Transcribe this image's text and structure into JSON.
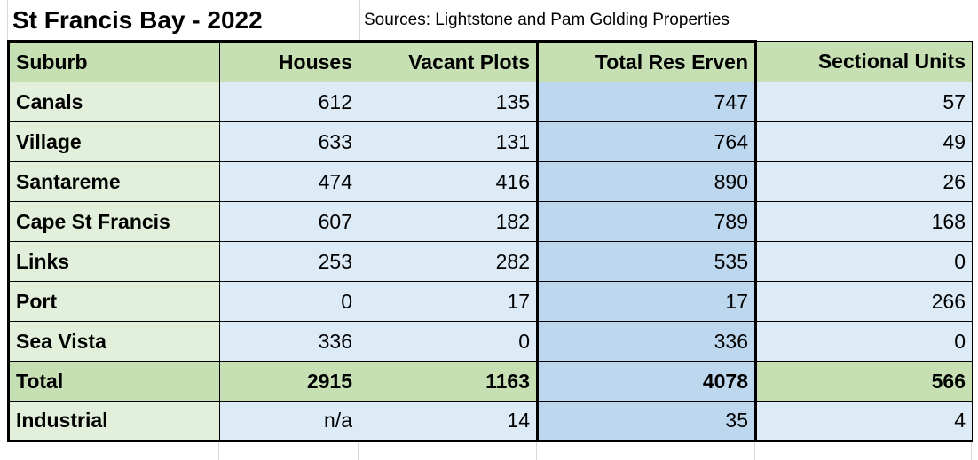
{
  "page": {
    "title": "St Francis Bay - 2022",
    "sources_note": "Sources: Lightstone and Pam Golding Properties"
  },
  "colors": {
    "header_green": "#c6e0b4",
    "row_label_green": "#e2efda",
    "value_blue": "#ddebf7",
    "total_column_blue": "#bdd7ee",
    "total_row_green": "#c6e0b4",
    "border_black": "#000000",
    "gridline_gray": "#d8d8d8"
  },
  "chart_data": {
    "type": "table",
    "title": "St Francis Bay - 2022",
    "subtitle": "Sources: Lightstone and Pam Golding Properties",
    "columns": [
      "Suburb",
      "Houses",
      "Vacant Plots",
      "Total Res Erven",
      "Sectional Units"
    ],
    "rows": [
      [
        "Canals",
        "612",
        "135",
        "747",
        "57"
      ],
      [
        "Village",
        "633",
        "131",
        "764",
        "49"
      ],
      [
        "Santareme",
        "474",
        "416",
        "890",
        "26"
      ],
      [
        "Cape St Francis",
        "607",
        "182",
        "789",
        "168"
      ],
      [
        "Links",
        "253",
        "282",
        "535",
        "0"
      ],
      [
        "Port",
        "0",
        "17",
        "17",
        "266"
      ],
      [
        "Sea Vista",
        "336",
        "0",
        "336",
        "0"
      ],
      [
        "Total",
        "2915",
        "1163",
        "4078",
        "566"
      ],
      [
        "Industrial",
        "n/a",
        "14",
        "35",
        "4"
      ]
    ],
    "emphasis_row_label": "Total",
    "highlighted_column": "Total Res Erven",
    "column_totals": {
      "Houses": 2915,
      "Vacant Plots": 1163,
      "Total Res Erven": 4078,
      "Sectional Units": 566
    }
  }
}
